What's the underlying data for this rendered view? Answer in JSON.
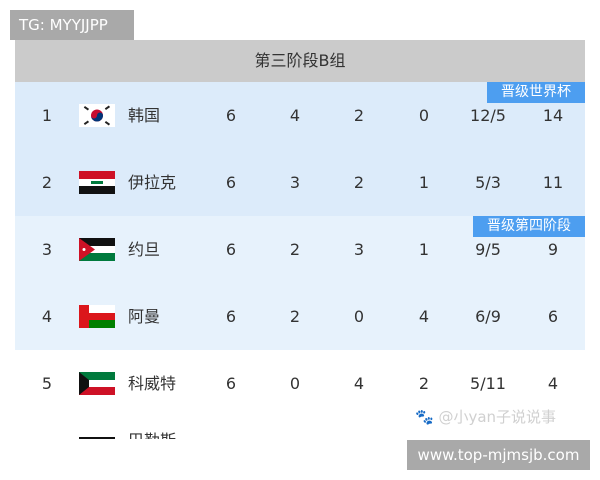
{
  "watermark_top": "TG: MYYJJPP",
  "title": "第三阶段B组",
  "rows": [
    {
      "rank": "1",
      "team": "韩国",
      "flag": "south-korea-flag",
      "p": "6",
      "w": "4",
      "d": "2",
      "l": "0",
      "gd": "12/5",
      "pts": "14",
      "badge": "晋级世界杯"
    },
    {
      "rank": "2",
      "team": "伊拉克",
      "flag": "iraq-flag",
      "p": "6",
      "w": "3",
      "d": "2",
      "l": "1",
      "gd": "5/3",
      "pts": "11"
    },
    {
      "rank": "3",
      "team": "约旦",
      "flag": "jordan-flag",
      "p": "6",
      "w": "2",
      "d": "3",
      "l": "1",
      "gd": "9/5",
      "pts": "9",
      "badge": "晋级第四阶段"
    },
    {
      "rank": "4",
      "team": "阿曼",
      "flag": "oman-flag",
      "p": "6",
      "w": "2",
      "d": "0",
      "l": "4",
      "gd": "6/9",
      "pts": "6"
    },
    {
      "rank": "5",
      "team": "科威特",
      "flag": "kuwait-flag",
      "p": "6",
      "w": "0",
      "d": "4",
      "l": "2",
      "gd": "5/11",
      "pts": "4"
    }
  ],
  "partial_row": {
    "team": "巴勒斯"
  },
  "watermark_author": "@小yan子说说事",
  "watermark_url": "www.top-mjmsjb.com",
  "colors": {
    "header": "#cbcbcb",
    "qualify_row": "#dcebfa",
    "playoff_row": "#e7f2fc",
    "badge": "#4d9ef0"
  }
}
